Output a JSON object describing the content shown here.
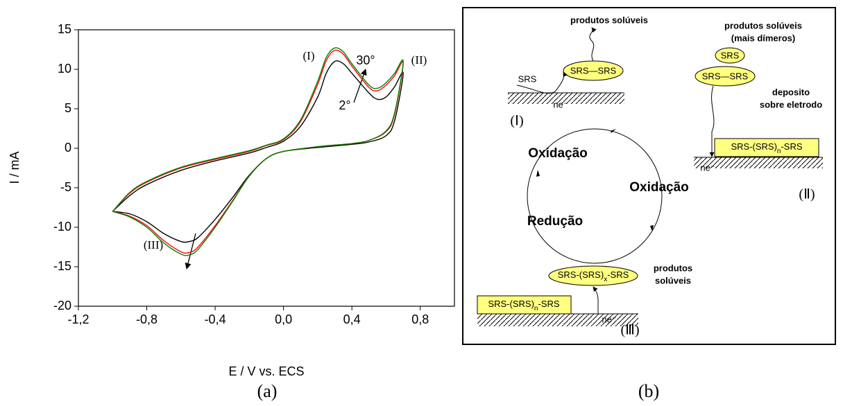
{
  "chart_data": {
    "type": "line",
    "x_label": "E / V vs. ECS",
    "y_label": "I / mA",
    "xlim": [
      -1.2,
      1.0
    ],
    "ylim": [
      -20,
      15
    ],
    "xticks": [
      {
        "value": -1.2,
        "label": "-1,2"
      },
      {
        "value": -0.8,
        "label": "-0,8"
      },
      {
        "value": -0.4,
        "label": "-0,4"
      },
      {
        "value": 0.0,
        "label": "0,0"
      },
      {
        "value": 0.4,
        "label": "0,4"
      },
      {
        "value": 0.8,
        "label": "0,8"
      }
    ],
    "yticks": [
      15,
      10,
      5,
      0,
      -5,
      -10,
      -15,
      -20
    ],
    "annotations": [
      "(I)",
      "(II)",
      "(III)",
      "30°",
      "2°"
    ],
    "series": [
      {
        "color": "#000000",
        "x": [
          -1.0,
          -0.9,
          -0.8,
          -0.6,
          -0.4,
          -0.2,
          -0.1,
          0.0,
          0.1,
          0.2,
          0.25,
          0.3,
          0.35,
          0.4,
          0.5,
          0.55,
          0.6,
          0.65,
          0.7,
          0.65,
          0.6,
          0.5,
          0.4,
          0.2,
          0.0,
          -0.1,
          -0.2,
          -0.3,
          -0.4,
          -0.5,
          -0.55,
          -0.6,
          -0.7,
          -0.8,
          -0.9,
          -1.0
        ],
        "values": [
          -8,
          -6,
          -4.6,
          -2.8,
          -1.6,
          -0.6,
          0.1,
          0.9,
          2.8,
          6.5,
          9.5,
          11.0,
          10.7,
          9.5,
          7.0,
          6.2,
          6.5,
          7.8,
          9.5,
          3.5,
          1.6,
          0.8,
          0.5,
          0.1,
          -0.4,
          -1.3,
          -3.4,
          -6.3,
          -9.0,
          -11.3,
          -11.8,
          -11.8,
          -10.8,
          -9.3,
          -8.3,
          -8.0
        ]
      },
      {
        "color": "#ff0000",
        "x": [
          -1.0,
          -0.9,
          -0.8,
          -0.6,
          -0.4,
          -0.2,
          -0.1,
          0.0,
          0.1,
          0.2,
          0.25,
          0.3,
          0.35,
          0.4,
          0.5,
          0.55,
          0.6,
          0.65,
          0.7,
          0.65,
          0.6,
          0.5,
          0.4,
          0.2,
          0.0,
          -0.1,
          -0.2,
          -0.3,
          -0.4,
          -0.5,
          -0.55,
          -0.6,
          -0.7,
          -0.8,
          -0.9,
          -1.0
        ],
        "values": [
          -8,
          -5.7,
          -4.3,
          -2.5,
          -1.4,
          -0.4,
          0.35,
          1.1,
          3.4,
          8.1,
          11.1,
          12.4,
          11.9,
          10.4,
          7.7,
          7.3,
          8.0,
          9.2,
          10.8,
          4.3,
          2.1,
          1.0,
          0.6,
          0.2,
          -0.4,
          -1.3,
          -3.5,
          -6.7,
          -9.8,
          -12.5,
          -13.2,
          -13.1,
          -11.7,
          -9.8,
          -8.6,
          -8.0
        ]
      },
      {
        "color": "#008000",
        "x": [
          -1.0,
          -0.9,
          -0.8,
          -0.6,
          -0.4,
          -0.2,
          -0.1,
          0.0,
          0.1,
          0.2,
          0.25,
          0.3,
          0.35,
          0.4,
          0.5,
          0.55,
          0.6,
          0.65,
          0.7,
          0.65,
          0.6,
          0.5,
          0.4,
          0.2,
          0.0,
          -0.1,
          -0.2,
          -0.3,
          -0.4,
          -0.5,
          -0.55,
          -0.6,
          -0.7,
          -0.8,
          -0.9,
          -1.0
        ],
        "values": [
          -8,
          -5.6,
          -4.2,
          -2.4,
          -1.3,
          -0.3,
          0.4,
          1.2,
          3.6,
          8.5,
          11.5,
          12.7,
          12.2,
          10.7,
          8.0,
          7.6,
          8.3,
          9.5,
          11.0,
          4.5,
          2.2,
          1.0,
          0.6,
          0.2,
          -0.4,
          -1.3,
          -3.5,
          -6.8,
          -10.0,
          -12.8,
          -13.5,
          -13.4,
          -12.0,
          -10.0,
          -8.7,
          -8.0
        ]
      }
    ]
  },
  "diagram": {
    "step_1": {
      "products": "produtos solúveis",
      "reactant": "SRS",
      "dimer": "SRS—SRS",
      "electron": "ne⁻",
      "label": "(Ⅰ)"
    },
    "step_2": {
      "products": [
        "produtos solúveis",
        "(mais dímeros)"
      ],
      "monomer": "SRS",
      "dimer": "SRS—SRS",
      "deposit_note": [
        "deposito",
        "sobre eletrodo"
      ],
      "deposit": {
        "main": "SRS-(SRS)",
        "sub": "n",
        "tail": "-SRS"
      },
      "electron": "ne⁻",
      "label": "(Ⅱ)"
    },
    "step_3": {
      "soluble": {
        "main": "SRS-(SRS)",
        "sub": "x",
        "tail": "-SRS"
      },
      "products": [
        "produtos",
        "solúveis"
      ],
      "film": {
        "main": "SRS-(SRS)",
        "sub": "n",
        "tail": "-SRS"
      },
      "electron": "ne⁻",
      "label": "(Ⅲ)"
    },
    "cycle": {
      "oxidation_1": "Oxidação",
      "oxidation_2": "Oxidação",
      "reduction": "Redução"
    }
  },
  "captions": [
    "(a)",
    "(b)"
  ]
}
